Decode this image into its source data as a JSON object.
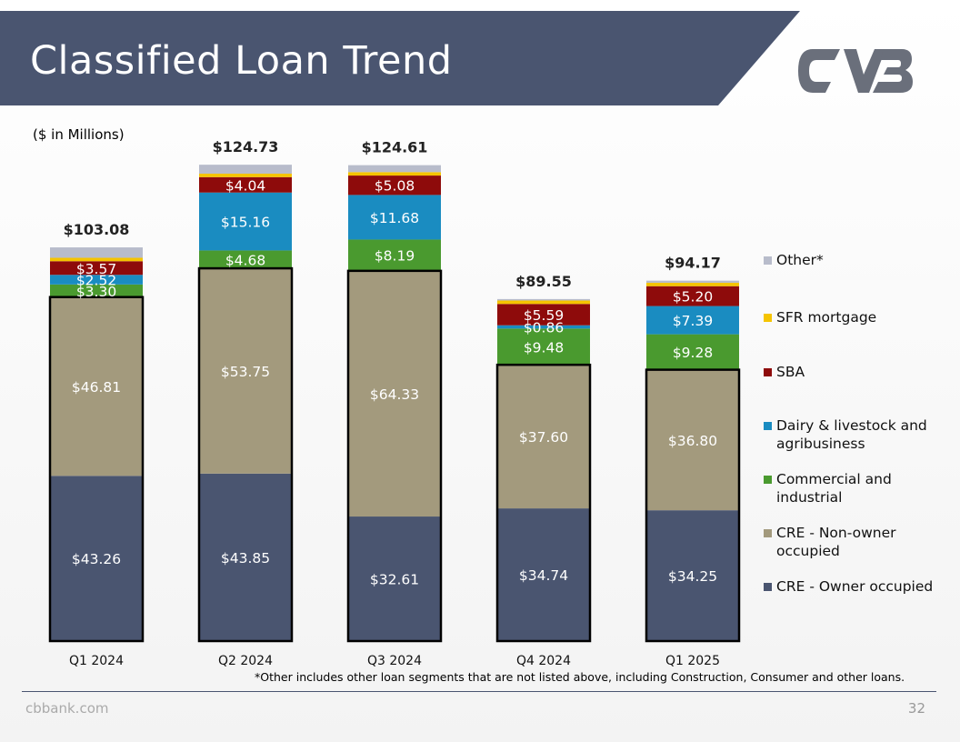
{
  "title": "Classified Loan Trend",
  "unit_note": "($ in Millions)",
  "footnote": "*Other includes other loan segments that are not listed above, including Construction, Consumer and other loans.",
  "footer": {
    "website": "cbbank.com",
    "page_number": "32"
  },
  "colors": {
    "title_band": "#4a5570",
    "cre_owner": "#4a5570",
    "cre_non_owner": "#a39a7d",
    "commercial": "#4a9a2f",
    "dairy": "#1a8cc1",
    "sba": "#8e0b0b",
    "sfr": "#f5c400",
    "other": "#b8bccb"
  },
  "chart_data": {
    "type": "bar",
    "stacked": true,
    "categories": [
      "Q1 2024",
      "Q2 2024",
      "Q3 2024",
      "Q4 2024",
      "Q1 2025"
    ],
    "totals": [
      "$103.08",
      "$124.73",
      "$124.61",
      "$89.55",
      "$94.17"
    ],
    "series": [
      {
        "name": "CRE - Owner occupied",
        "color": "#4a5570",
        "values": [
          43.26,
          43.85,
          32.61,
          34.74,
          34.25
        ],
        "labels": [
          "$43.26",
          "$43.85",
          "$32.61",
          "$34.74",
          "$34.25"
        ]
      },
      {
        "name": "CRE - Non-owner occupied",
        "color": "#a39a7d",
        "values": [
          46.81,
          53.75,
          64.33,
          37.6,
          36.8
        ],
        "labels": [
          "$46.81",
          "$53.75",
          "$64.33",
          "$37.60",
          "$36.80"
        ]
      },
      {
        "name": "Commercial and industrial",
        "color": "#4a9a2f",
        "values": [
          3.3,
          4.68,
          8.19,
          9.48,
          9.28
        ],
        "labels": [
          "$3.30",
          "$4.68",
          "$8.19",
          "$9.48",
          "$9.28"
        ]
      },
      {
        "name": "Dairy & livestock and agribusiness",
        "color": "#1a8cc1",
        "values": [
          2.52,
          15.16,
          11.68,
          0.86,
          7.39
        ],
        "labels": [
          "$2.52",
          "$15.16",
          "$11.68",
          "$0.86",
          "$7.39"
        ]
      },
      {
        "name": "SBA",
        "color": "#8e0b0b",
        "values": [
          3.57,
          4.04,
          5.08,
          5.59,
          5.2
        ],
        "labels": [
          "$3.57",
          "$4.04",
          "$5.08",
          "$5.59",
          "$5.20"
        ]
      },
      {
        "name": "SFR mortgage",
        "color": "#f5c400",
        "values": [
          0.9,
          0.9,
          0.9,
          0.9,
          0.9
        ],
        "labels": [
          "",
          "",
          "",
          "",
          ""
        ]
      },
      {
        "name": "Other*",
        "color": "#b8bccb",
        "values": [
          2.72,
          2.35,
          1.82,
          0.38,
          0.55
        ],
        "labels": [
          "",
          "",
          "",
          "",
          ""
        ]
      }
    ],
    "ylim": [
      0,
      130
    ],
    "legend": "right",
    "grid": false
  }
}
